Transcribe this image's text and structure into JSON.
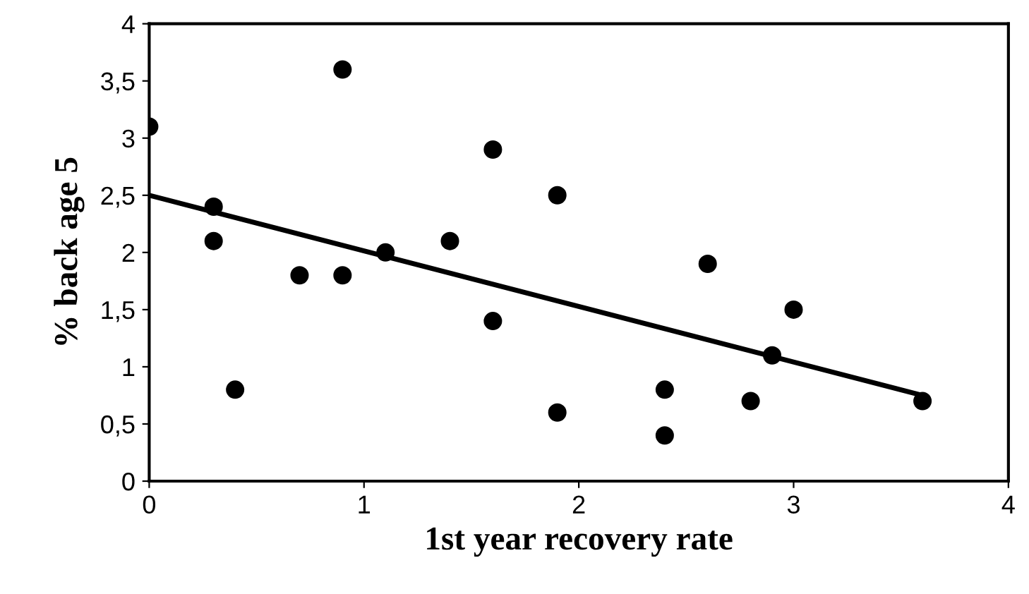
{
  "chart_data": {
    "type": "scatter",
    "xlabel": "1st year recovery rate",
    "ylabel": "% back age 5",
    "series": [
      {
        "color": "#000000",
        "marker": "circle",
        "x": [
          0,
          0.3,
          0.3,
          0.4,
          0.7,
          0.9,
          0.9,
          1.1,
          1.4,
          1.6,
          1.6,
          1.9,
          1.9,
          2.4,
          2.4,
          2.6,
          2.8,
          2.9,
          3.0,
          3.6
        ],
        "values": [
          3.1,
          2.4,
          2.1,
          0.8,
          1.8,
          1.8,
          3.6,
          2.0,
          2.1,
          2.9,
          1.4,
          2.5,
          0.6,
          0.8,
          0.4,
          1.9,
          0.7,
          1.1,
          1.5,
          0.7
        ]
      },
      {
        "type": "line",
        "color": "#000000",
        "marker": "none",
        "x": [
          0,
          3.6
        ],
        "values": [
          2.5,
          0.75
        ]
      }
    ],
    "xlim": [
      0,
      4
    ],
    "xticks": [
      0,
      1,
      2,
      3,
      4
    ],
    "ylim": [
      0,
      4
    ],
    "yticks": [
      0,
      {
        "value": 0.5,
        "label": "0,5"
      },
      1,
      {
        "value": 1.5,
        "label": "1,5"
      },
      2,
      {
        "value": 2.5,
        "label": "2,5"
      },
      3,
      {
        "value": 3.5,
        "label": "3,5"
      },
      4
    ],
    "grid": false,
    "legend": false
  }
}
